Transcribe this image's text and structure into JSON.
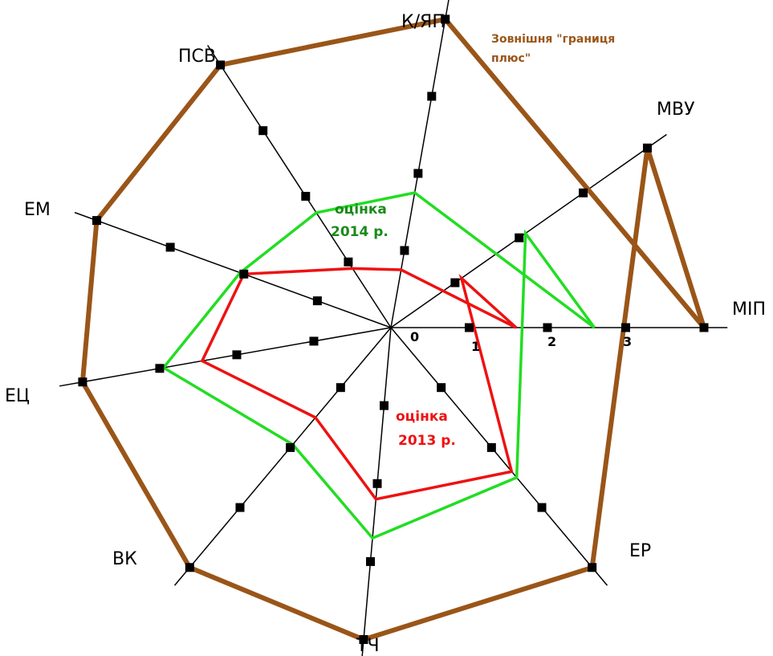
{
  "chart_data": {
    "type": "radar",
    "axes": [
      "МІП",
      "К/ЯП",
      "ПСВ",
      "ЕМ",
      "ЕЦ",
      "ВК",
      "ТЧ",
      "ЕР",
      "МВУ"
    ],
    "tick_labels": [
      "0",
      "1",
      "2",
      "3"
    ],
    "rlim": [
      0,
      4
    ],
    "series": [
      {
        "name": "Зовнішня \"границя плюс\"",
        "color": "#9a5518",
        "values": [
          4,
          4,
          4,
          4,
          4,
          4,
          4,
          4,
          4
        ]
      },
      {
        "name_lines": [
          "оцінка",
          "2014 р."
        ],
        "color": "#22dd22",
        "values": [
          2.6,
          1.75,
          1.75,
          2.05,
          2.95,
          1.95,
          2.7,
          2.5,
          2.1
        ]
      },
      {
        "name_lines": [
          "оцінка",
          "2013 р."
        ],
        "color": "#ee1111",
        "values": [
          1.6,
          0.75,
          0.9,
          2.0,
          2.45,
          1.5,
          2.2,
          2.4,
          1.1
        ]
      }
    ],
    "outer_label_lines": [
      "Зовнішня \"границя",
      "плюс\""
    ]
  }
}
